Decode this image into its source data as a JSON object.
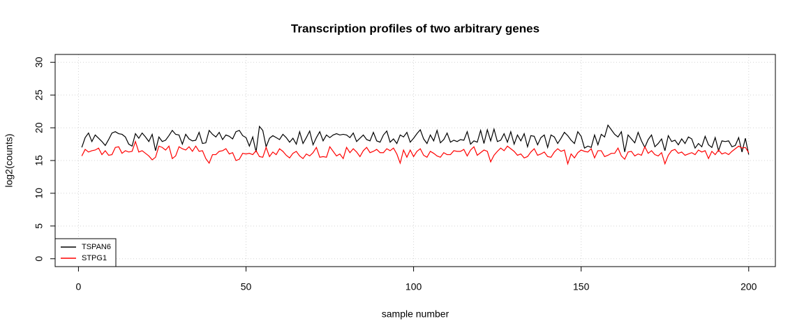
{
  "chart_data": {
    "type": "line",
    "title": "Transcription profiles of two arbitrary genes",
    "xlabel": "sample number",
    "ylabel": "log2(counts)",
    "x": [
      1,
      2,
      3,
      4,
      5,
      6,
      7,
      8,
      9,
      10,
      11,
      12,
      13,
      14,
      15,
      16,
      17,
      18,
      19,
      20,
      21,
      22,
      23,
      24,
      25,
      26,
      27,
      28,
      29,
      30,
      31,
      32,
      33,
      34,
      35,
      36,
      37,
      38,
      39,
      40,
      41,
      42,
      43,
      44,
      45,
      46,
      47,
      48,
      49,
      50,
      51,
      52,
      53,
      54,
      55,
      56,
      57,
      58,
      59,
      60,
      61,
      62,
      63,
      64,
      65,
      66,
      67,
      68,
      69,
      70,
      71,
      72,
      73,
      74,
      75,
      76,
      77,
      78,
      79,
      80,
      81,
      82,
      83,
      84,
      85,
      86,
      87,
      88,
      89,
      90,
      91,
      92,
      93,
      94,
      95,
      96,
      97,
      98,
      99,
      100,
      101,
      102,
      103,
      104,
      105,
      106,
      107,
      108,
      109,
      110,
      111,
      112,
      113,
      114,
      115,
      116,
      117,
      118,
      119,
      120,
      121,
      122,
      123,
      124,
      125,
      126,
      127,
      128,
      129,
      130,
      131,
      132,
      133,
      134,
      135,
      136,
      137,
      138,
      139,
      140,
      141,
      142,
      143,
      144,
      145,
      146,
      147,
      148,
      149,
      150,
      151,
      152,
      153,
      154,
      155,
      156,
      157,
      158,
      159,
      160,
      161,
      162,
      163,
      164,
      165,
      166,
      167,
      168,
      169,
      170,
      171,
      172,
      173,
      174,
      175,
      176,
      177,
      178,
      179,
      180,
      181,
      182,
      183,
      184,
      185,
      186,
      187,
      188,
      189,
      190,
      191,
      192,
      193,
      194,
      195,
      196,
      197,
      198,
      199,
      200
    ],
    "series": [
      {
        "name": "TSPAN6",
        "color": "#000000",
        "values": [
          17.0,
          18.5,
          19.2,
          17.9,
          18.9,
          18.4,
          17.9,
          17.3,
          18.2,
          19.2,
          19.4,
          19.1,
          19.0,
          18.6,
          17.5,
          17.2,
          19.1,
          18.4,
          19.2,
          18.6,
          17.9,
          19.0,
          16.5,
          18.6,
          17.9,
          18.1,
          18.8,
          19.6,
          19.0,
          18.9,
          17.5,
          19.0,
          18.3,
          18.0,
          18.1,
          19.3,
          17.6,
          17.7,
          19.6,
          19.0,
          18.6,
          19.3,
          18.2,
          18.9,
          18.7,
          18.3,
          19.4,
          19.6,
          18.8,
          18.5,
          17.2,
          18.6,
          16.3,
          20.2,
          19.6,
          17.1,
          18.4,
          18.8,
          18.5,
          18.2,
          19.0,
          18.5,
          17.8,
          18.4,
          17.5,
          19.4,
          17.6,
          18.5,
          19.5,
          17.4,
          18.5,
          19.4,
          18.0,
          18.9,
          18.5,
          18.9,
          19.1,
          18.9,
          19.0,
          18.9,
          18.5,
          19.2,
          17.9,
          18.4,
          18.9,
          18.2,
          18.0,
          19.3,
          18.0,
          17.8,
          18.9,
          19.5,
          17.8,
          18.3,
          17.6,
          18.9,
          18.6,
          19.3,
          17.8,
          18.4,
          19.1,
          19.7,
          18.3,
          17.6,
          18.9,
          18.0,
          19.6,
          17.7,
          18.2,
          19.2,
          17.8,
          18.1,
          17.9,
          18.2,
          18.1,
          19.4,
          17.5,
          18.0,
          17.8,
          19.6,
          17.6,
          19.7,
          18.0,
          19.8,
          17.9,
          18.1,
          19.1,
          17.8,
          19.4,
          17.5,
          18.9,
          18.0,
          19.1,
          17.1,
          18.8,
          18.7,
          17.4,
          18.5,
          18.9,
          17.0,
          18.9,
          18.6,
          17.6,
          18.4,
          19.3,
          18.8,
          18.1,
          17.6,
          19.4,
          18.7,
          16.9,
          17.2,
          17.0,
          18.9,
          17.4,
          19.0,
          18.6,
          20.4,
          19.7,
          19.0,
          18.6,
          19.4,
          16.3,
          18.9,
          18.3,
          17.7,
          19.3,
          18.0,
          17.0,
          18.2,
          18.9,
          17.1,
          17.6,
          18.3,
          16.5,
          18.8,
          17.9,
          18.1,
          17.4,
          18.3,
          17.6,
          18.6,
          18.3,
          16.9,
          17.6,
          17.1,
          18.7,
          17.4,
          17.0,
          18.5,
          16.5,
          18.0,
          17.9,
          18.0,
          17.1,
          17.3,
          18.5,
          16.3,
          18.4,
          15.9
        ]
      },
      {
        "name": "STPG1",
        "color": "#ff0000",
        "values": [
          15.7,
          16.7,
          16.3,
          16.5,
          16.6,
          16.9,
          15.9,
          16.5,
          15.8,
          15.9,
          17.0,
          17.1,
          16.1,
          16.5,
          16.3,
          16.4,
          17.9,
          16.3,
          16.5,
          16.1,
          15.7,
          15.1,
          15.5,
          17.2,
          17.0,
          16.6,
          17.2,
          15.3,
          15.7,
          17.1,
          16.8,
          16.6,
          17.1,
          16.4,
          17.2,
          16.4,
          16.5,
          15.3,
          14.6,
          15.9,
          15.9,
          16.4,
          16.5,
          16.8,
          16.0,
          16.2,
          15.0,
          15.2,
          16.1,
          16.0,
          16.1,
          15.9,
          16.5,
          15.6,
          15.5,
          17.0,
          15.6,
          16.3,
          15.9,
          16.8,
          16.4,
          15.8,
          15.4,
          16.1,
          16.4,
          15.7,
          15.3,
          16.0,
          15.7,
          16.2,
          17.0,
          15.5,
          15.6,
          15.5,
          17.1,
          16.4,
          15.7,
          16.0,
          15.3,
          17.0,
          16.2,
          16.8,
          16.3,
          15.6,
          16.5,
          17.0,
          16.2,
          16.4,
          16.7,
          16.2,
          16.2,
          16.8,
          16.5,
          16.9,
          16.0,
          14.6,
          16.6,
          15.5,
          16.6,
          15.6,
          16.4,
          16.8,
          15.8,
          15.5,
          16.4,
          16.1,
          15.7,
          15.5,
          16.2,
          15.9,
          15.9,
          16.5,
          16.4,
          16.4,
          16.7,
          15.7,
          16.6,
          17.1,
          15.8,
          16.2,
          16.6,
          16.4,
          14.8,
          15.8,
          16.4,
          16.9,
          16.5,
          17.2,
          16.8,
          16.4,
          15.8,
          16.0,
          15.4,
          15.6,
          16.3,
          16.8,
          15.8,
          16.0,
          16.3,
          15.6,
          15.5,
          16.3,
          16.8,
          16.4,
          16.6,
          14.5,
          16.0,
          15.4,
          16.2,
          16.6,
          16.4,
          16.3,
          16.8,
          15.4,
          16.5,
          16.5,
          15.6,
          15.8,
          16.1,
          16.1,
          16.9,
          15.7,
          15.2,
          16.3,
          16.4,
          15.7,
          16.0,
          15.8,
          17.1,
          16.1,
          16.5,
          15.9,
          15.7,
          16.2,
          14.5,
          15.8,
          16.5,
          16.7,
          16.1,
          16.3,
          15.8,
          16.0,
          16.2,
          15.9,
          16.6,
          16.3,
          16.5,
          15.3,
          16.4,
          15.9,
          16.6,
          16.0,
          16.2,
          15.9,
          16.4,
          16.8,
          17.2,
          16.9,
          17.0,
          16.2
        ]
      }
    ],
    "xlim": [
      -6.96,
      207.96
    ],
    "xticks": [
      0,
      50,
      100,
      150,
      200
    ],
    "ylim": [
      -1.2,
      31.2
    ],
    "yticks": [
      0,
      5,
      10,
      15,
      20,
      25,
      30
    ],
    "grid": true,
    "legend": "bottomleft"
  }
}
